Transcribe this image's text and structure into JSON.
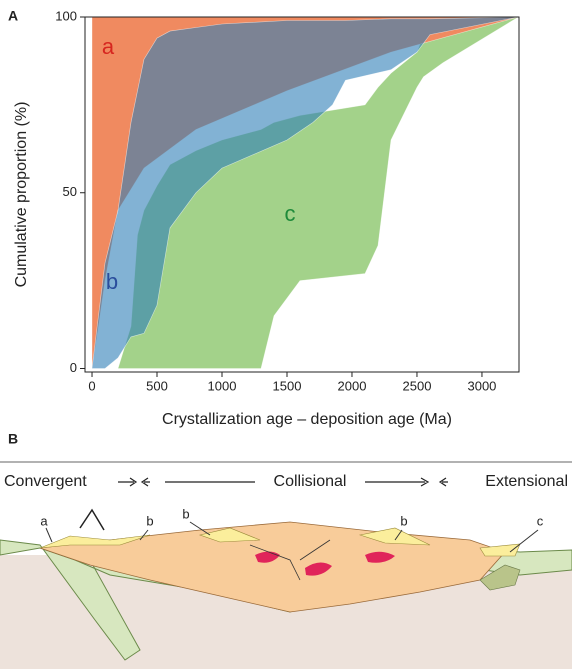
{
  "chart_data": {
    "type": "band",
    "panel_label": "A",
    "x_label": "Crystallization age – deposition age (Ma)",
    "y_label": "Cumulative proportion (%)",
    "xlim": [
      -54,
      3285
    ],
    "ylim": [
      -1,
      100
    ],
    "xticks": [
      0,
      500,
      1000,
      1500,
      2000,
      2500,
      3000
    ],
    "yticks": [
      0,
      50,
      100
    ],
    "series": [
      {
        "name": "c",
        "color": "#a3d28a",
        "x": [
          200,
          300,
          350,
          400,
          500,
          600,
          800,
          1000,
          1300,
          1400,
          1600,
          2100,
          2200,
          2300,
          2500,
          2550,
          2700,
          3280
        ],
        "upper": [
          0,
          12,
          38,
          45,
          52,
          58,
          62,
          65,
          68,
          70,
          72,
          75,
          80,
          84,
          90,
          95,
          97,
          100
        ],
        "lower": [
          0,
          0,
          0,
          0,
          0,
          0,
          0,
          0,
          0,
          15,
          25,
          27,
          35,
          65,
          80,
          83,
          87,
          100
        ]
      },
      {
        "name": "a",
        "color": "#f08a60",
        "x": [
          0,
          50,
          100,
          200,
          400,
          800,
          1500,
          2300,
          3280
        ],
        "upper": [
          100,
          100,
          100,
          100,
          100,
          100,
          100,
          100,
          100
        ],
        "lower": [
          0,
          12,
          25,
          45,
          57,
          68,
          79,
          90,
          100
        ]
      },
      {
        "name": "b",
        "color": "#2f7fb8",
        "x": [
          0,
          100,
          200,
          300,
          400,
          500,
          600,
          800,
          1000,
          1500,
          1700,
          1850,
          1950,
          2300,
          2500,
          2600,
          3280
        ],
        "upper": [
          0,
          30,
          45,
          70,
          88,
          94,
          96,
          97,
          98,
          99,
          99,
          99,
          99,
          99.5,
          99.5,
          99.5,
          100
        ],
        "lower": [
          0,
          0,
          3,
          9,
          10,
          18,
          40,
          50,
          57,
          65,
          70,
          75,
          82,
          85,
          90,
          95,
          100
        ]
      }
    ]
  },
  "diagram": {
    "panel_label": "B",
    "regimes": [
      "Convergent",
      "Collisional",
      "Extensional"
    ],
    "basins": [
      "a",
      "b",
      "b",
      "b",
      "c"
    ]
  }
}
